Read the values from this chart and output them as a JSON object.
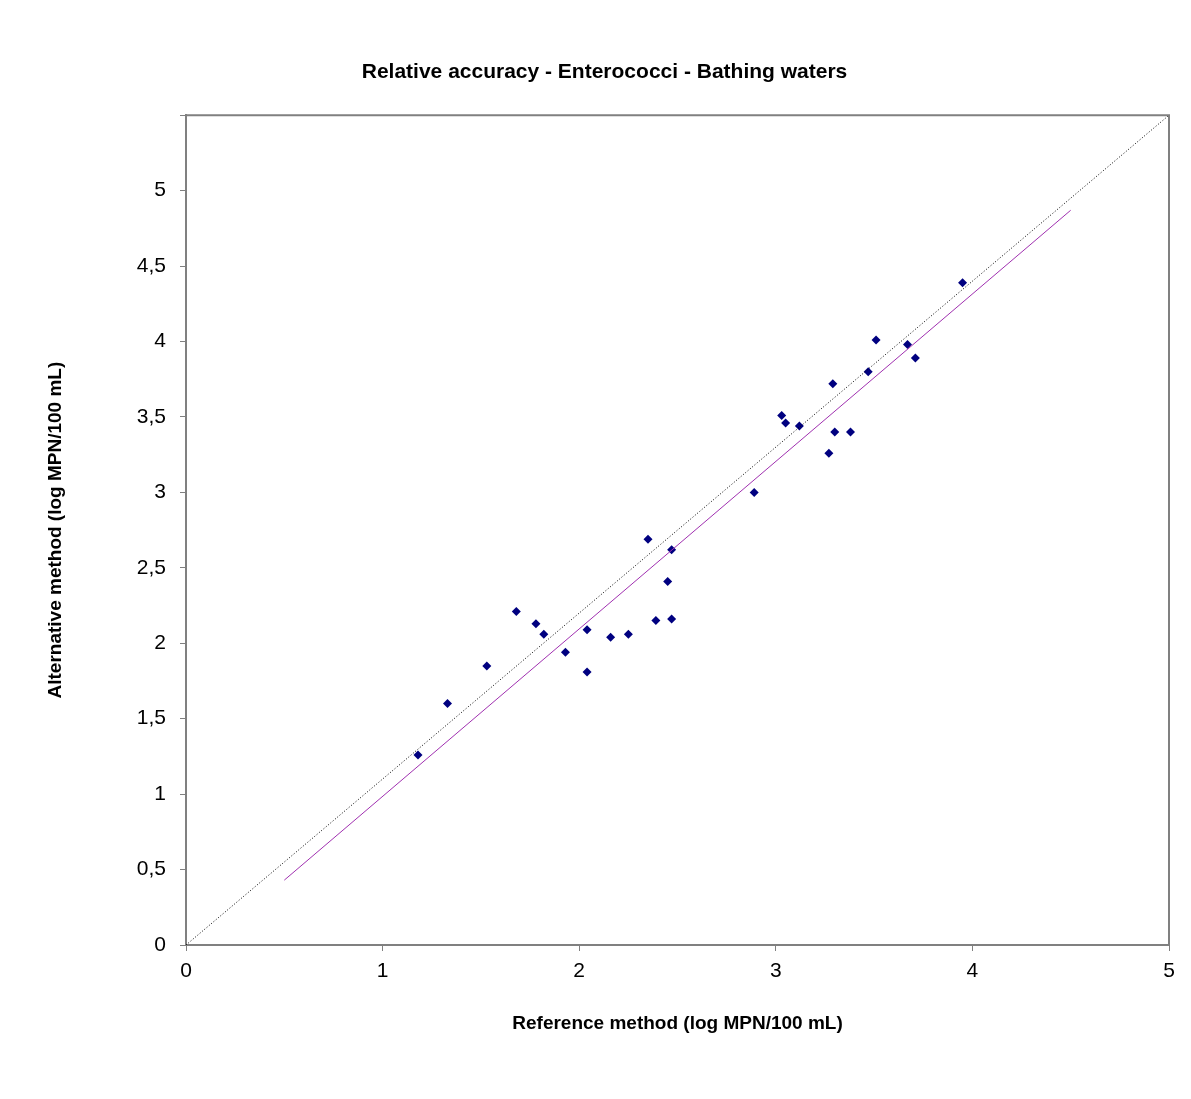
{
  "chart_data": {
    "type": "scatter",
    "title": "Relative accuracy - Enterococci - Bathing waters",
    "xlabel": "Reference method (log MPN/100 mL)",
    "ylabel": "Alternative method (log MPN/100 mL)",
    "xlim": [
      0,
      5
    ],
    "xticks": [
      0,
      1,
      2,
      3,
      4,
      5
    ],
    "ylim": [
      0,
      5.5
    ],
    "yticks": [
      0,
      {
        "value": 0.5,
        "label": "0,5"
      },
      1,
      {
        "value": 1.5,
        "label": "1,5"
      },
      2,
      {
        "value": 2.5,
        "label": "2,5"
      },
      3,
      {
        "value": 3.5,
        "label": "3,5"
      },
      4,
      {
        "value": 4.5,
        "label": "4,5"
      },
      5,
      {
        "value": 5.5,
        "label": null
      }
    ],
    "grid": false,
    "legend": false,
    "marker": "diamond",
    "series": [
      {
        "type": "line",
        "color": "#000000",
        "line_style": "dotted",
        "marker": "none",
        "x": [
          0,
          5
        ],
        "values": [
          0,
          5.5
        ]
      },
      {
        "type": "line",
        "color": "#a030b0",
        "line_style": "solid",
        "marker": "none",
        "x": [
          0.5,
          4.5
        ],
        "values": [
          0.43,
          4.87
        ]
      },
      {
        "type": "scatter",
        "color": "#000080",
        "x": [
          1.18,
          1.33,
          1.53,
          1.68,
          1.78,
          1.82,
          1.93,
          2.04,
          2.04,
          2.16,
          2.25,
          2.35,
          2.39,
          2.45,
          2.47,
          2.47,
          2.89,
          3.03,
          3.05,
          3.12,
          3.27,
          3.29,
          3.3,
          3.38,
          3.47,
          3.51,
          3.67,
          3.71,
          3.95
        ],
        "values": [
          1.26,
          1.6,
          1.85,
          2.21,
          2.13,
          2.06,
          1.94,
          2.09,
          1.81,
          2.04,
          2.06,
          2.69,
          2.15,
          2.41,
          2.16,
          2.62,
          3.0,
          3.51,
          3.46,
          3.44,
          3.26,
          3.72,
          3.4,
          3.4,
          3.8,
          4.01,
          3.98,
          3.89,
          4.39
        ]
      }
    ]
  }
}
